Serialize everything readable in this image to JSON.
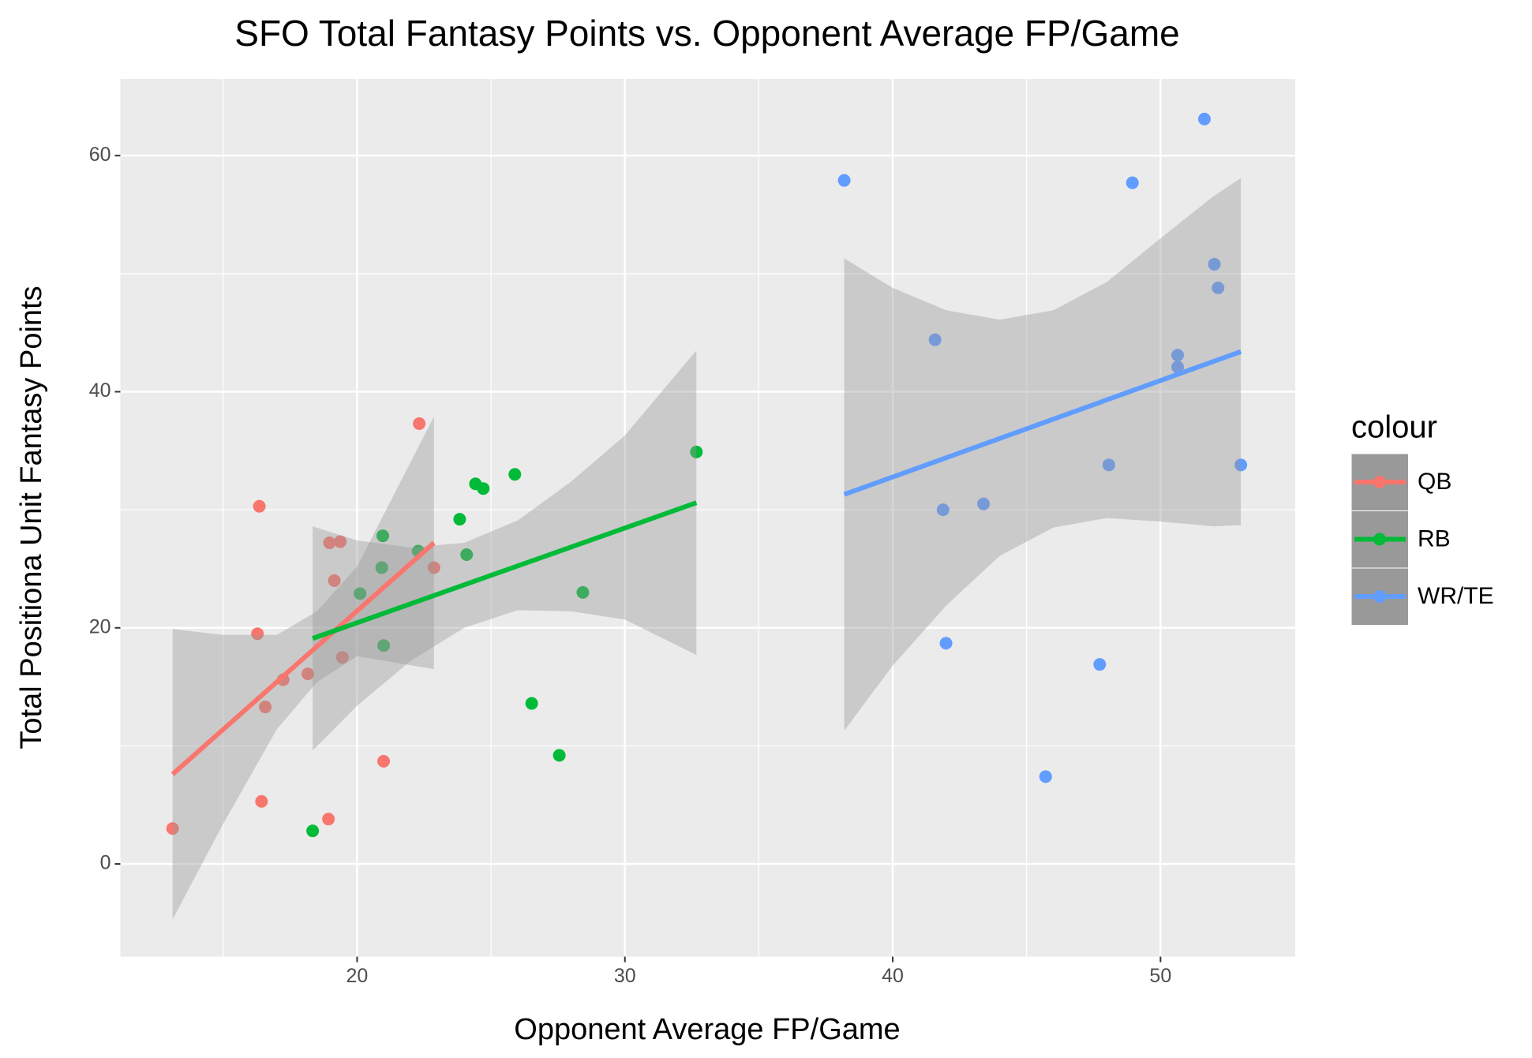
{
  "chart_data": {
    "type": "scatter",
    "title": "SFO Total Fantasy Points vs. Opponent Average FP/Game",
    "x_label": "Opponent Average FP/Game",
    "y_label": "Total Positiona Unit Fantasy Points",
    "legend_title": "colour",
    "xlim": [
      11.16,
      55.03
    ],
    "ylim": [
      -7.85,
      66.5
    ],
    "xticks": [
      20,
      30,
      40,
      50
    ],
    "yticks": [
      0,
      20,
      40,
      60
    ],
    "xminor": [
      15,
      25,
      35,
      45
    ],
    "yminor": [
      10,
      30,
      50
    ],
    "grid": true,
    "series": [
      {
        "name": "QB",
        "color": "#F8766D",
        "x": [
          13.11,
          16.35,
          16.28,
          16.43,
          16.57,
          17.24,
          18.16,
          18.97,
          19.37,
          19.15,
          19.45,
          18.93,
          20.99,
          22.32,
          22.87
        ],
        "values": [
          3.0,
          30.3,
          19.5,
          5.3,
          13.3,
          15.6,
          16.1,
          27.2,
          27.3,
          24.0,
          17.5,
          3.8,
          8.7,
          37.3,
          25.1
        ],
        "fit": {
          "x": [
            13.11,
            22.87
          ],
          "values": [
            7.6,
            27.2
          ]
        },
        "band": {
          "x": [
            13.11,
            15,
            17,
            18.5,
            20,
            22.87
          ],
          "lower": [
            -4.7,
            3.4,
            11.4,
            15.4,
            17.6,
            16.5
          ],
          "upper": [
            19.9,
            19.4,
            19.4,
            21.4,
            25.2,
            37.9
          ]
        }
      },
      {
        "name": "RB",
        "color": "#00BA38",
        "x": [
          18.34,
          20.11,
          20.92,
          20.96,
          20.99,
          22.28,
          23.83,
          24.09,
          24.42,
          24.71,
          25.89,
          26.52,
          27.55,
          28.43,
          32.67
        ],
        "values": [
          2.8,
          22.9,
          25.1,
          27.8,
          18.5,
          26.5,
          29.2,
          26.2,
          32.2,
          31.8,
          33.0,
          13.6,
          9.2,
          23.0,
          34.9
        ],
        "fit": {
          "x": [
            18.34,
            32.67
          ],
          "values": [
            19.1,
            30.6
          ]
        },
        "band": {
          "x": [
            18.34,
            20,
            22,
            24,
            26,
            28,
            30,
            32.67
          ],
          "lower": [
            9.6,
            13.4,
            17.2,
            20.0,
            21.5,
            21.4,
            20.7,
            17.7
          ],
          "upper": [
            28.6,
            27.4,
            26.8,
            27.2,
            29.1,
            32.4,
            36.3,
            43.5
          ]
        }
      },
      {
        "name": "WR/TE",
        "color": "#619CFF",
        "x": [
          38.19,
          41.58,
          41.88,
          41.99,
          43.39,
          45.71,
          47.73,
          48.07,
          48.95,
          50.64,
          50.64,
          51.64,
          52.01,
          52.15,
          53.0
        ],
        "values": [
          57.9,
          44.4,
          30.0,
          18.7,
          30.5,
          7.4,
          16.9,
          33.8,
          57.7,
          43.1,
          42.1,
          63.1,
          50.8,
          48.8,
          33.8
        ],
        "fit": {
          "x": [
            38.19,
            53.0
          ],
          "values": [
            31.3,
            43.4
          ]
        },
        "band": {
          "x": [
            38.19,
            40,
            42,
            44,
            46,
            48,
            50,
            52,
            53
          ],
          "lower": [
            11.3,
            16.8,
            21.9,
            26.1,
            28.5,
            29.3,
            29.0,
            28.6,
            28.7
          ],
          "upper": [
            51.3,
            48.8,
            46.9,
            46.1,
            46.9,
            49.3,
            53.0,
            56.6,
            58.1
          ]
        }
      }
    ]
  }
}
